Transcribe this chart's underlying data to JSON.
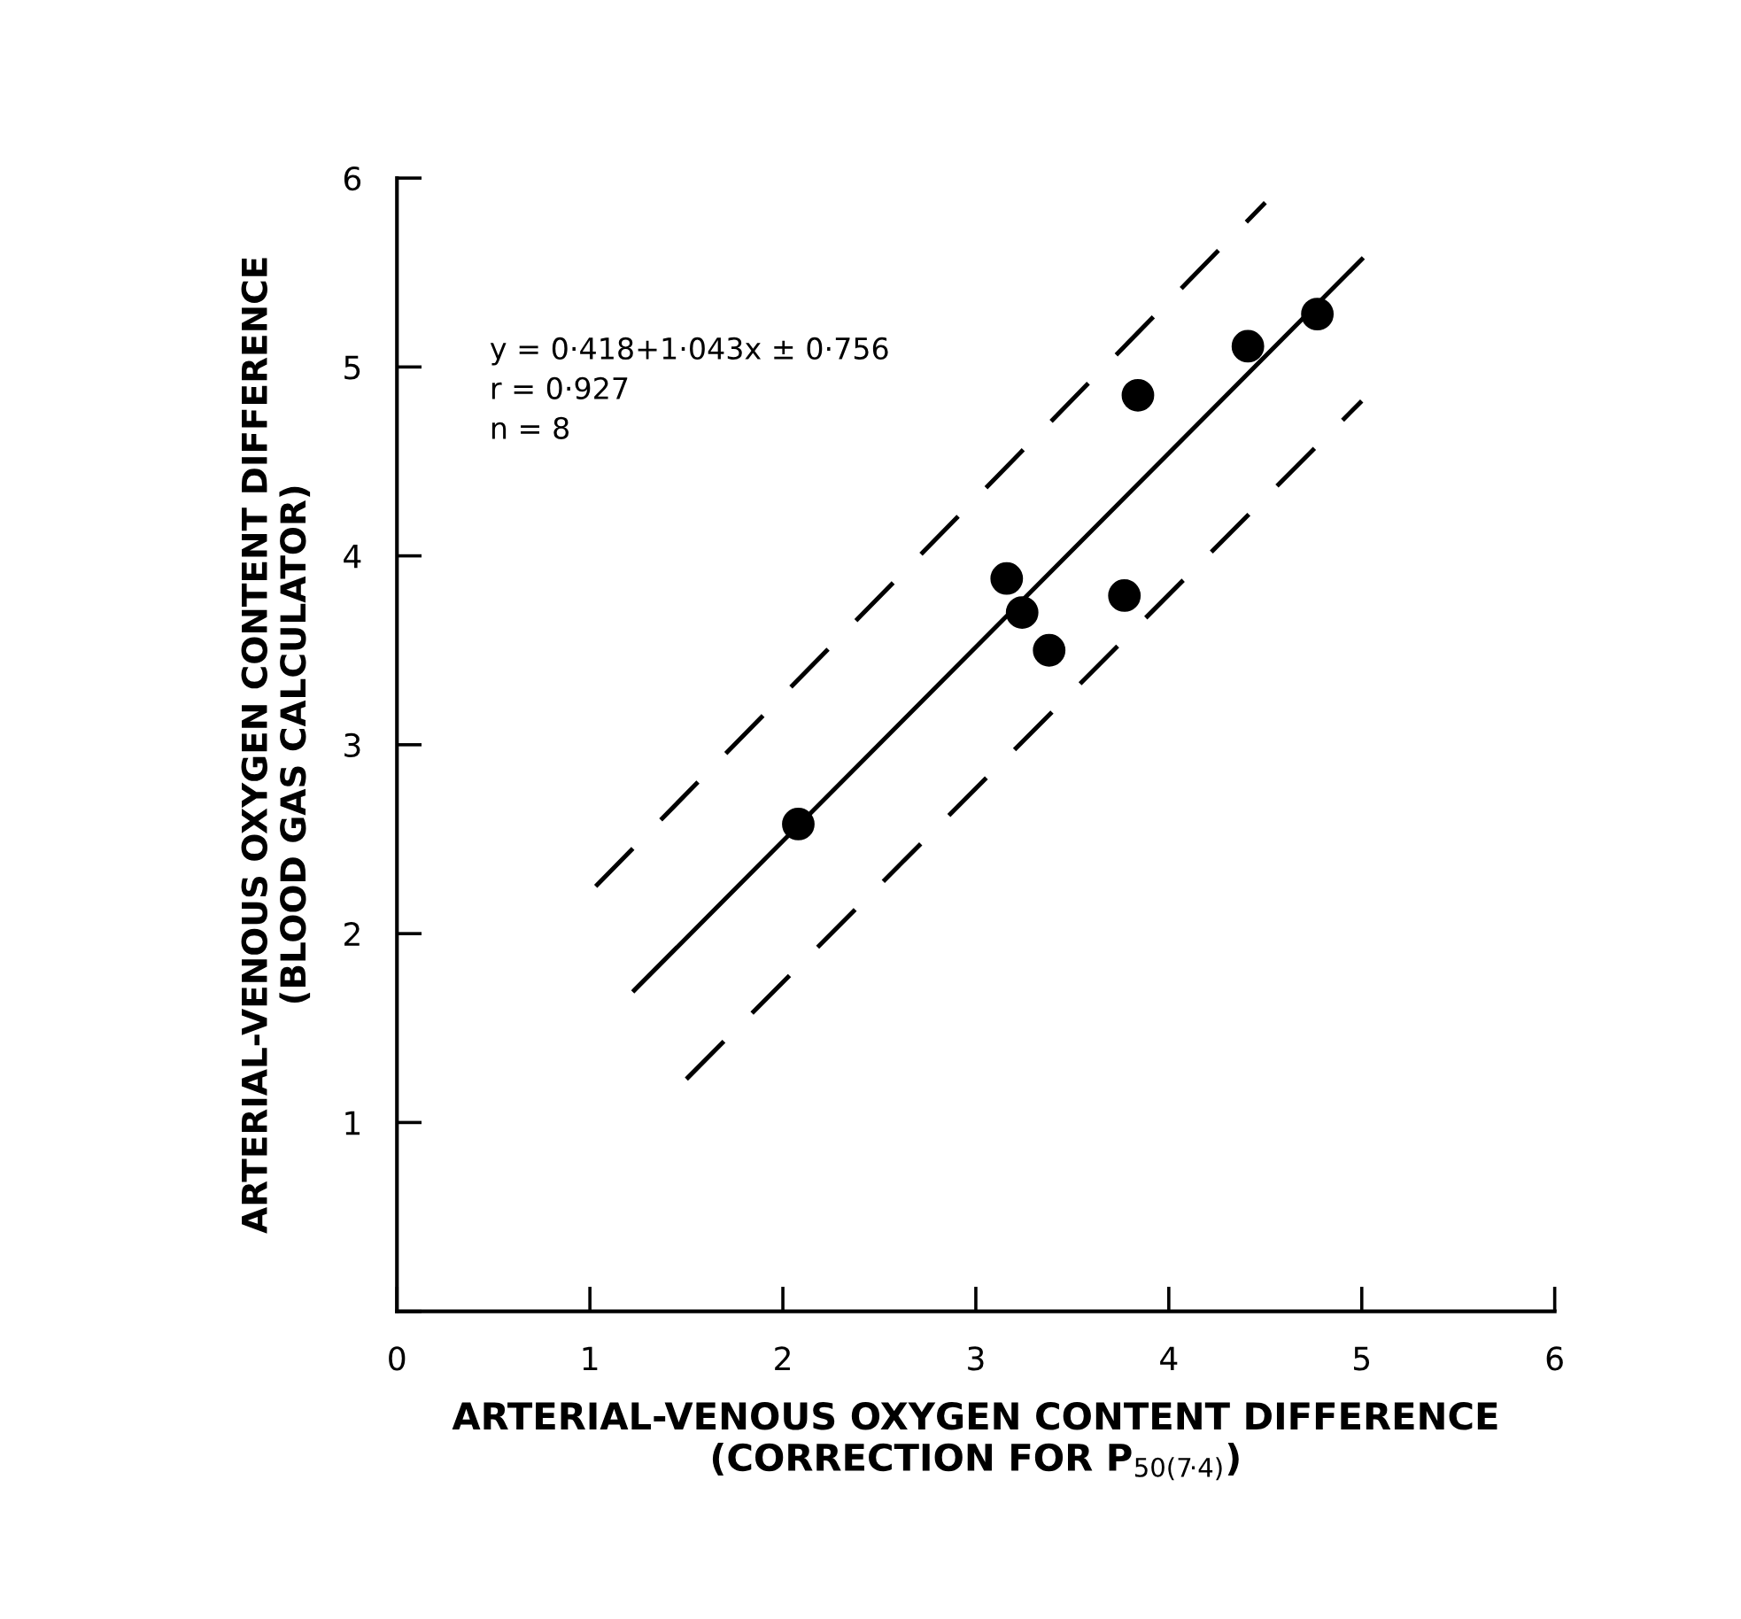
{
  "chart_data": {
    "type": "scatter",
    "xlabel": "ARTERIAL-VENOUS OXYGEN CONTENT DIFFERENCE\n(CORRECTION FOR P$_{50(7·4)}$)",
    "ylabel": "ARTERIAL-VENOUS OXYGEN CONTENT DIFFERENCE\n(BLOOD GAS CALCULATOR)",
    "annotations": [
      "y = 0·418+1·043x ± 0·756\nr = 0·927\nn = 8"
    ],
    "xlim": [
      0,
      6
    ],
    "ylim": [
      0,
      6
    ],
    "xticks": [
      0,
      1,
      2,
      3,
      4,
      5,
      6
    ],
    "yticks": [
      {
        "value": 0,
        "label": null
      },
      1,
      2,
      3,
      4,
      5,
      6
    ],
    "grid": false,
    "legend": false,
    "series": [
      {
        "color": "#000000",
        "marker": "circle",
        "x": [
          2.08,
          3.16,
          3.24,
          3.38,
          3.77,
          3.84,
          4.41,
          4.77
        ],
        "values": [
          2.58,
          3.88,
          3.7,
          3.5,
          3.79,
          4.85,
          5.11,
          5.28
        ]
      },
      {
        "type": "line",
        "color": "#000000",
        "marker": "none",
        "line_style": "solid",
        "x": [
          1.23,
          5.0
        ],
        "values": [
          1.7,
          5.57
        ]
      },
      {
        "type": "line",
        "color": "#000000",
        "marker": "none",
        "line_style": "dashed",
        "x": [
          1.03,
          4.5
        ],
        "values": [
          2.25,
          5.87
        ]
      },
      {
        "type": "line",
        "color": "#000000",
        "marker": "none",
        "line_style": "dashed",
        "x": [
          1.5,
          5.0
        ],
        "values": [
          1.23,
          4.82
        ]
      }
    ]
  }
}
